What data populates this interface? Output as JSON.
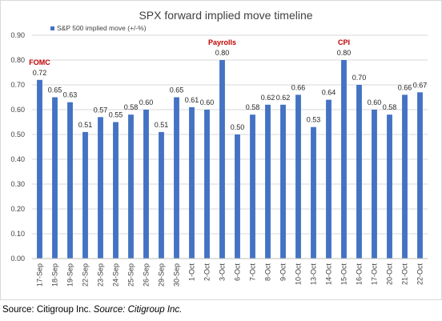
{
  "chart_data": {
    "type": "bar",
    "title": "SPX forward implied move timeline",
    "series": [
      {
        "name": "S&P 500 implied move (+/-%)",
        "color": "#4472c4",
        "values": [
          0.72,
          0.65,
          0.63,
          0.51,
          0.57,
          0.55,
          0.58,
          0.6,
          0.51,
          0.65,
          0.61,
          0.6,
          0.8,
          0.5,
          0.58,
          0.62,
          0.62,
          0.66,
          0.53,
          0.64,
          0.8,
          0.7,
          0.6,
          0.58,
          0.66,
          0.67
        ]
      }
    ],
    "categories": [
      "17-Sep",
      "18-Sep",
      "19-Sep",
      "22-Sep",
      "23-Sep",
      "24-Sep",
      "25-Sep",
      "26-Sep",
      "29-Sep",
      "30-Sep",
      "1-Oct",
      "2-Oct",
      "3-Oct",
      "6-Oct",
      "7-Oct",
      "8-Oct",
      "9-Oct",
      "10-Oct",
      "13-Oct",
      "14-Oct",
      "15-Oct",
      "16-Oct",
      "17-Oct",
      "20-Oct",
      "21-Oct",
      "22-Oct"
    ],
    "data_labels": [
      "0.72",
      "0.65",
      "0.63",
      "0.51",
      "0.57",
      "0.55",
      "0.58",
      "0.60",
      "0.51",
      "0.65",
      "0.61",
      "0.60",
      "0.80",
      "0.50",
      "0.58",
      "0.62",
      "0.62",
      "0.66",
      "0.53",
      "0.64",
      "0.80",
      "0.70",
      "0.60",
      "0.58",
      "0.66",
      "0.67"
    ],
    "yticks": [
      "0.00",
      "0.10",
      "0.20",
      "0.30",
      "0.40",
      "0.50",
      "0.60",
      "0.70",
      "0.80",
      "0.90"
    ],
    "ylim": [
      0,
      0.9
    ],
    "grid": true,
    "legend_position": "top-left",
    "events": [
      {
        "category": "17-Sep",
        "label": "FOMC",
        "color": "#c00000"
      },
      {
        "category": "3-Oct",
        "label": "Payrolls",
        "color": "#c00000"
      },
      {
        "category": "15-Oct",
        "label": "CPI",
        "color": "#c00000"
      }
    ]
  },
  "source": {
    "prefix": "Source: Citigroup Inc. ",
    "italic": "Source: Citigroup Inc."
  }
}
